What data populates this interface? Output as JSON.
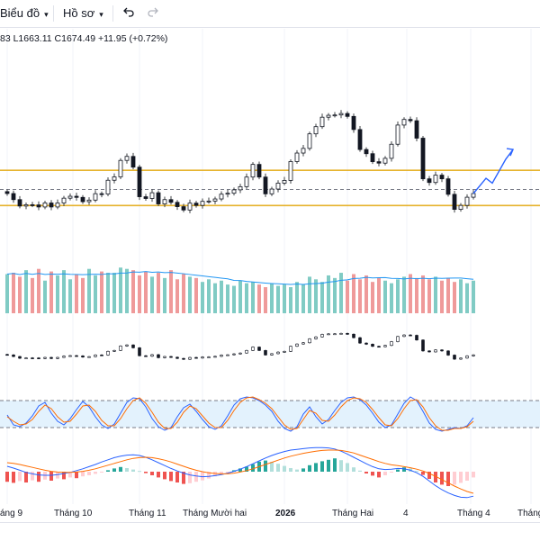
{
  "toolbar": {
    "chart_label": "Biểu đồ",
    "profile_label": "Hồ sơ",
    "undo_icon": "undo-icon",
    "redo_icon": "redo-icon"
  },
  "ohlc": {
    "text": "83  L1663.11  C1674.49  +11.95 (+0.72%)"
  },
  "x_axis": {
    "labels": [
      "áng 9",
      "Tháng 10",
      "Tháng 11",
      "Tháng Mười hai",
      "2026",
      "Tháng Hai",
      "4",
      "Tháng 4",
      "Tháng"
    ]
  },
  "colors": {
    "up": "#26a69a",
    "down": "#ef5350",
    "zone": "#e6b32e",
    "arrow": "#2962ff"
  },
  "chart_data": [
    {
      "type": "candlestick",
      "close": [
        1662.5,
        1658.7,
        1654.7,
        1655.5,
        1655.4,
        1654.1,
        1656.6,
        1654.1,
        1656.6,
        1659.6,
        1660.8,
        1660.1,
        1657.4,
        1658.4,
        1662.4,
        1662.2,
        1670.8,
        1672.9,
        1683.2,
        1685.7,
        1679.0,
        1660.5,
        1659.4,
        1663.0,
        1656.0,
        1658.7,
        1657.0,
        1654.3,
        1652.2,
        1656.5,
        1655.1,
        1657.6,
        1657.8,
        1659.1,
        1662.1,
        1662.7,
        1664.8,
        1666.8,
        1672.8,
        1680.7,
        1672.8,
        1662.3,
        1665.3,
        1669.0,
        1670.7,
        1682.5,
        1687.8,
        1690.7,
        1699.8,
        1704.3,
        1710.2,
        1711.4,
        1711.6,
        1712.5,
        1710.7,
        1702.5,
        1690.0,
        1687.4,
        1682.4,
        1681.5,
        1684.5,
        1693.3,
        1705.3,
        1708.8,
        1708.0,
        1697.1,
        1671.7,
        1669.4,
        1674.0,
        1671.7,
        1662.0,
        1652.6,
        1655.1,
        1660.2,
        1662.5
      ],
      "volume": [
        30,
        31,
        28,
        33,
        27,
        34,
        25,
        32,
        29,
        33,
        26,
        30,
        27,
        34,
        29,
        32,
        31,
        31,
        35,
        34,
        33,
        29,
        32,
        28,
        31,
        27,
        33,
        26,
        30,
        28,
        27,
        24,
        26,
        23,
        25,
        22,
        21,
        25,
        23,
        24,
        22,
        20,
        23,
        21,
        22,
        20,
        24,
        22,
        28,
        26,
        24,
        29,
        27,
        31,
        25,
        30,
        26,
        29,
        24,
        27,
        25,
        23,
        26,
        28,
        30,
        27,
        29,
        26,
        28,
        25,
        27,
        24,
        26,
        23,
        25
      ],
      "ylim": [
        1640,
        1730
      ],
      "zone": [
        1655,
        1677
      ],
      "dashed_level": 1665,
      "projection": [
        [
          1662.5,
          1672.0,
          1669.0,
          1684.0
        ],
        [
          1684.0,
          1690.0
        ]
      ]
    },
    {
      "type": "line",
      "name": "stochastic",
      "bands": [
        20,
        80
      ],
      "k": [
        48,
        26,
        22,
        30,
        46,
        68,
        76,
        52,
        34,
        26,
        40,
        60,
        78,
        66,
        44,
        26,
        18,
        28,
        52,
        76,
        86,
        84,
        66,
        40,
        22,
        14,
        20,
        44,
        64,
        72,
        56,
        38,
        22,
        16,
        24,
        46,
        70,
        84,
        88,
        86,
        80,
        70,
        56,
        34,
        18,
        12,
        22,
        50,
        66,
        44,
        28,
        38,
        58,
        76,
        86,
        88,
        82,
        70,
        52,
        32,
        20,
        26,
        50,
        74,
        88,
        80,
        56,
        30,
        16,
        12,
        16,
        20,
        18,
        24,
        42
      ],
      "d": [
        44,
        34,
        26,
        28,
        38,
        56,
        70,
        62,
        44,
        32,
        34,
        50,
        68,
        70,
        56,
        36,
        24,
        24,
        40,
        62,
        80,
        86,
        74,
        54,
        32,
        18,
        18,
        32,
        54,
        68,
        62,
        46,
        30,
        20,
        20,
        36,
        58,
        76,
        86,
        88,
        82,
        74,
        62,
        44,
        26,
        16,
        18,
        38,
        58,
        52,
        36,
        34,
        48,
        66,
        80,
        86,
        84,
        76,
        60,
        42,
        26,
        24,
        40,
        62,
        80,
        82,
        66,
        42,
        24,
        14,
        14,
        18,
        18,
        22,
        34
      ]
    },
    {
      "type": "bar",
      "name": "macd",
      "histogram": [
        -2.8,
        -3.1,
        -2.6,
        -3.0,
        -2.4,
        -2.8,
        -2.2,
        -2.5,
        -1.9,
        -2.1,
        -1.6,
        -1.8,
        -1.3,
        -1.0,
        -0.6,
        -0.2,
        0.4,
        0.9,
        1.3,
        1.0,
        0.6,
        0.2,
        -0.4,
        -1.0,
        -1.6,
        -2.1,
        -2.6,
        -3.0,
        -3.4,
        -3.2,
        -2.8,
        -2.4,
        -1.9,
        -1.3,
        -0.8,
        -0.3,
        0.4,
        0.9,
        1.4,
        2.1,
        2.8,
        3.1,
        2.7,
        2.2,
        1.6,
        1.0,
        0.6,
        0.9,
        1.8,
        2.4,
        2.9,
        3.3,
        3.7,
        3.2,
        2.4,
        1.2,
        0.3,
        -0.5,
        -1.1,
        -1.6,
        -1.0,
        -0.2,
        0.6,
        1.2,
        0.9,
        0.2,
        -0.9,
        -2.0,
        -3.0,
        -3.6,
        -4.0,
        -3.6,
        -3.1,
        -2.5,
        -1.6
      ],
      "macd": [
        1.5,
        1.0,
        0.4,
        -0.2,
        -0.6,
        -0.9,
        -1.0,
        -1.0,
        -0.8,
        -0.5,
        -0.2,
        0.3,
        0.8,
        1.4,
        2.0,
        2.7,
        3.3,
        3.9,
        4.3,
        4.6,
        4.7,
        4.5,
        4.0,
        3.3,
        2.5,
        1.7,
        0.9,
        0.2,
        -0.4,
        -0.9,
        -1.2,
        -1.4,
        -1.3,
        -1.1,
        -0.8,
        -0.4,
        0.1,
        0.7,
        1.4,
        2.2,
        3.0,
        3.8,
        4.5,
        5.1,
        5.6,
        6.0,
        6.2,
        6.4,
        6.6,
        6.7,
        6.7,
        6.6,
        6.3,
        5.7,
        4.9,
        4.0,
        3.1,
        2.2,
        1.4,
        0.8,
        0.6,
        0.7,
        0.9,
        0.8,
        0.4,
        -0.3,
        -1.3,
        -2.6,
        -3.9,
        -5.0,
        -5.9,
        -6.6,
        -7.1,
        -7.2,
        -6.8
      ],
      "signal": [
        2.5,
        2.3,
        2.0,
        1.6,
        1.2,
        0.8,
        0.4,
        0.1,
        -0.1,
        -0.2,
        -0.2,
        -0.1,
        0.1,
        0.4,
        0.8,
        1.3,
        1.8,
        2.3,
        2.8,
        3.3,
        3.7,
        3.9,
        4.0,
        3.9,
        3.6,
        3.2,
        2.7,
        2.1,
        1.5,
        0.9,
        0.4,
        0.0,
        -0.3,
        -0.5,
        -0.6,
        -0.6,
        -0.4,
        -0.1,
        0.3,
        0.8,
        1.4,
        2.0,
        2.6,
        3.2,
        3.8,
        4.3,
        4.7,
        5.1,
        5.4,
        5.7,
        5.9,
        6.0,
        6.0,
        5.9,
        5.6,
        5.2,
        4.6,
        4.0,
        3.4,
        2.8,
        2.3,
        1.9,
        1.7,
        1.4,
        1.1,
        0.7,
        0.2,
        -0.5,
        -1.3,
        -2.2,
        -3.1,
        -4.0,
        -4.8,
        -5.5,
        -6.0
      ]
    }
  ]
}
